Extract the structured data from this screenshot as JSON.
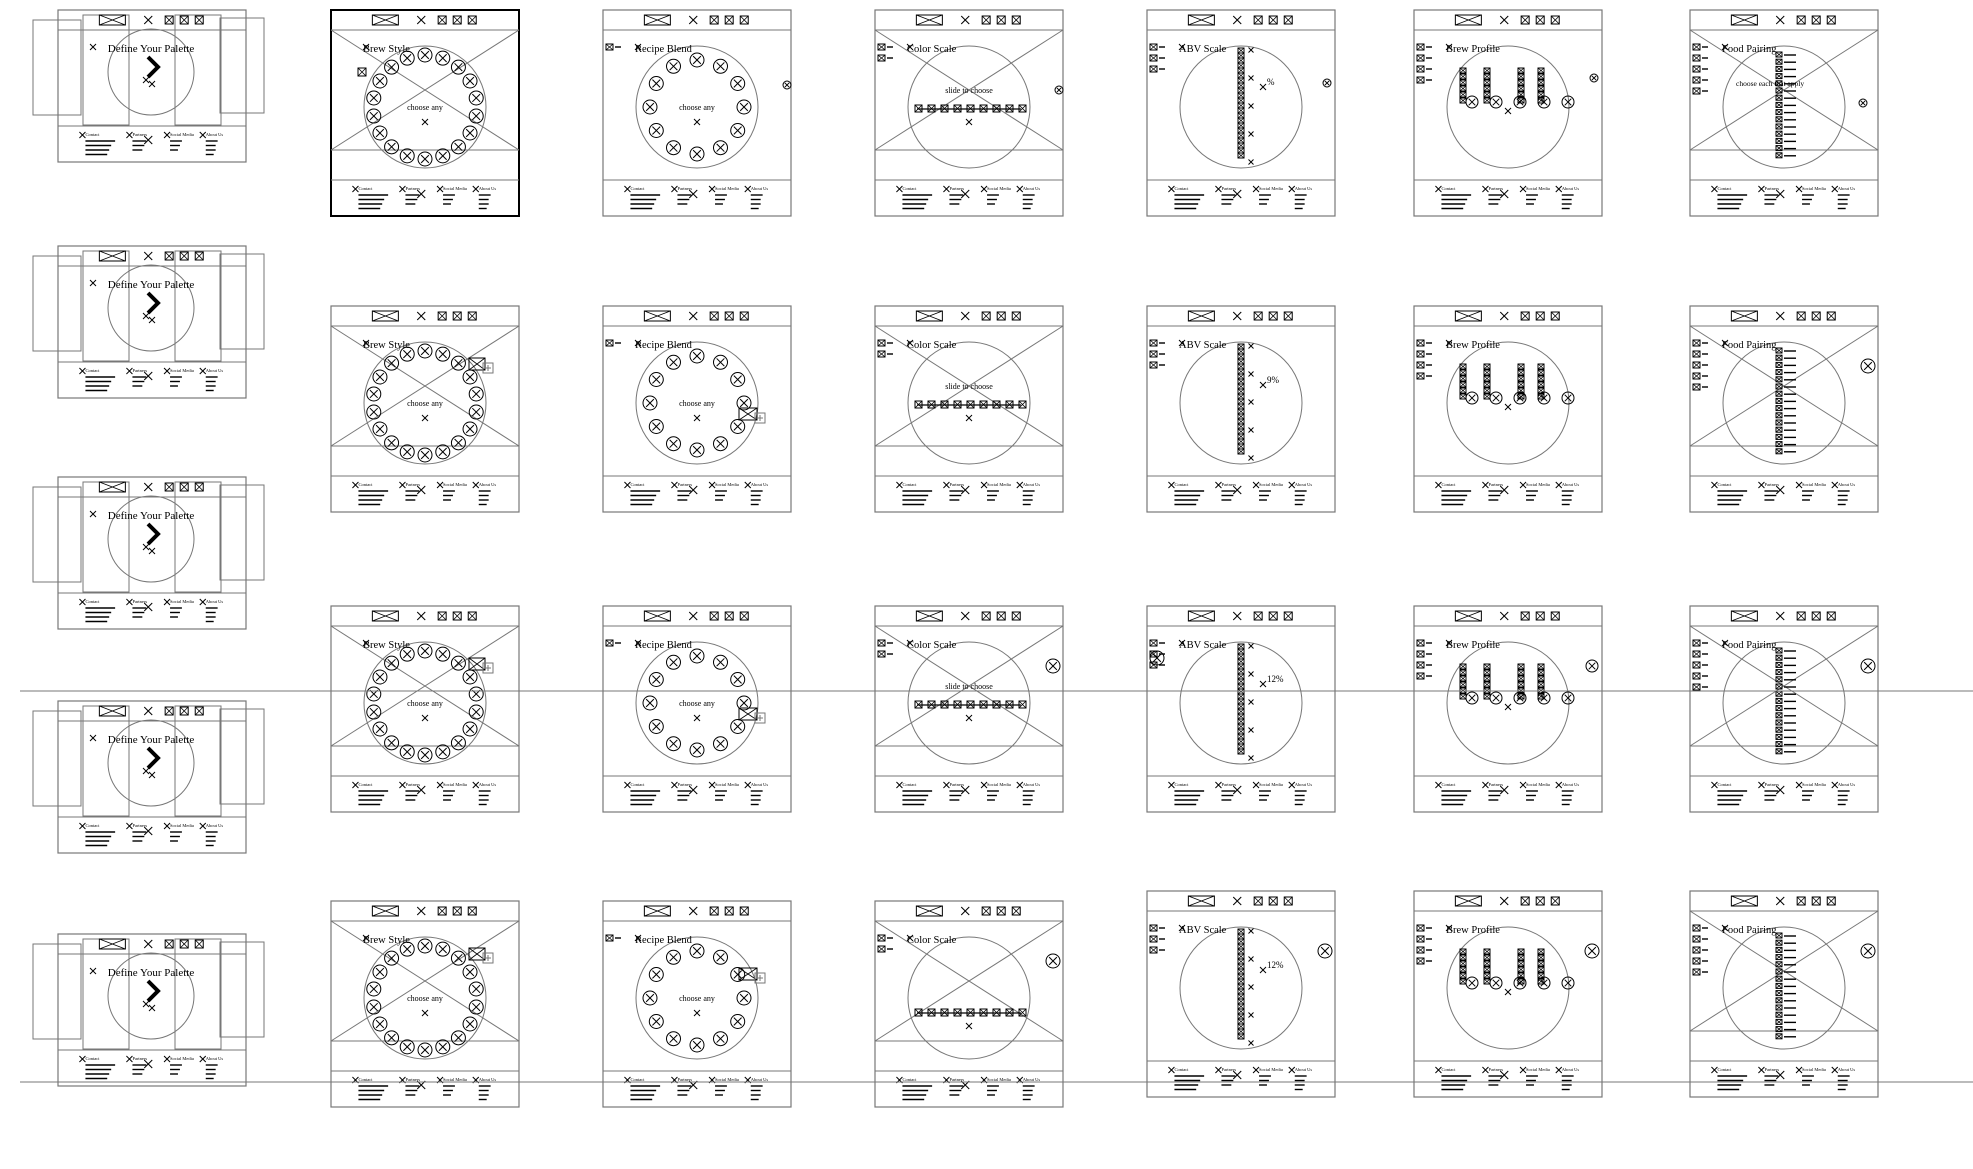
{
  "labels": {
    "define_palette": "Define Your Palette",
    "brew_style": "Brew Style",
    "recipe_blend": "Recipe Blend",
    "color_scale": "Color Scale",
    "abv_scale": "ABV Scale",
    "brew_profile": "Brew Profile",
    "food_pairing": "Food Pairing",
    "choose_any": "choose any",
    "slide_to_choose": "slide to choose",
    "choose_each_that_apply": "choose each that apply",
    "contact": "Contact",
    "partners": "Partners",
    "social_media": "Social Media",
    "about_us": "About Us"
  },
  "abv_values": [
    "%",
    "9%",
    "12%",
    "12%"
  ],
  "icons": {
    "placeholder": "crossed-box",
    "next": "chevron-right",
    "beer_option": "mug-icon",
    "add": "plus-icon"
  },
  "colors": {
    "stroke": "#777777",
    "dark_stroke": "#000000",
    "background": "#ffffff"
  }
}
